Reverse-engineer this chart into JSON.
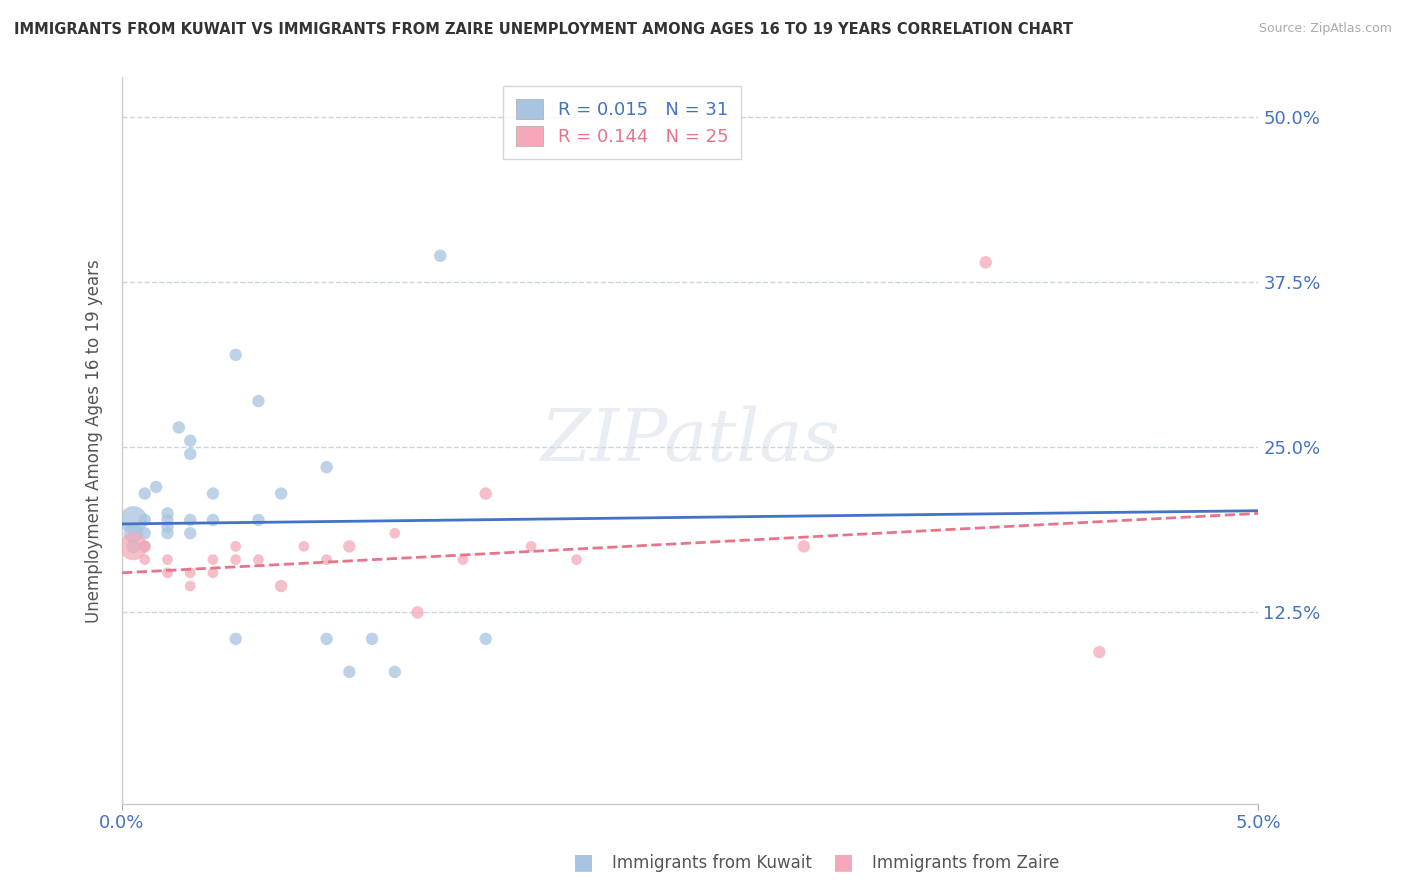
{
  "title": "IMMIGRANTS FROM KUWAIT VS IMMIGRANTS FROM ZAIRE UNEMPLOYMENT AMONG AGES 16 TO 19 YEARS CORRELATION CHART",
  "source": "Source: ZipAtlas.com",
  "ylabel": "Unemployment Among Ages 16 to 19 years",
  "legend_kuwait": "R = 0.015   N = 31",
  "legend_zaire": "R = 0.144   N = 25",
  "legend_label_kuwait": "Immigrants from Kuwait",
  "legend_label_zaire": "Immigrants from Zaire",
  "kuwait_color": "#a8c4e0",
  "zaire_color": "#f4a8b8",
  "kuwait_line_color": "#4472c4",
  "zaire_line_color": "#e8748a",
  "background_color": "#ffffff",
  "grid_color": "#c8d4e8",
  "xlim": [
    0.0,
    0.05
  ],
  "ylim": [
    -0.02,
    0.53
  ],
  "y_ticks": [
    0.125,
    0.25,
    0.375,
    0.5
  ],
  "y_tick_labels": [
    "12.5%",
    "25.0%",
    "37.5%",
    "50.0%"
  ],
  "kuwait_x": [
    0.0005,
    0.0005,
    0.0005,
    0.001,
    0.001,
    0.001,
    0.001,
    0.0015,
    0.002,
    0.002,
    0.002,
    0.002,
    0.0025,
    0.003,
    0.003,
    0.003,
    0.003,
    0.004,
    0.004,
    0.005,
    0.005,
    0.006,
    0.006,
    0.007,
    0.009,
    0.009,
    0.01,
    0.011,
    0.012,
    0.014,
    0.016
  ],
  "kuwait_y": [
    0.195,
    0.185,
    0.175,
    0.215,
    0.195,
    0.185,
    0.175,
    0.22,
    0.2,
    0.195,
    0.19,
    0.185,
    0.265,
    0.255,
    0.245,
    0.195,
    0.185,
    0.215,
    0.195,
    0.32,
    0.105,
    0.285,
    0.195,
    0.215,
    0.235,
    0.105,
    0.08,
    0.105,
    0.08,
    0.395,
    0.105
  ],
  "kuwait_sizes": [
    400,
    200,
    100,
    80,
    80,
    80,
    60,
    80,
    80,
    80,
    80,
    80,
    80,
    80,
    80,
    80,
    80,
    80,
    80,
    80,
    80,
    80,
    80,
    80,
    80,
    80,
    80,
    80,
    80,
    80,
    80
  ],
  "zaire_x": [
    0.0005,
    0.001,
    0.001,
    0.002,
    0.002,
    0.003,
    0.003,
    0.004,
    0.004,
    0.005,
    0.005,
    0.006,
    0.007,
    0.008,
    0.009,
    0.01,
    0.012,
    0.013,
    0.015,
    0.016,
    0.018,
    0.02,
    0.03,
    0.038,
    0.043
  ],
  "zaire_y": [
    0.175,
    0.175,
    0.165,
    0.165,
    0.155,
    0.155,
    0.145,
    0.165,
    0.155,
    0.175,
    0.165,
    0.165,
    0.145,
    0.175,
    0.165,
    0.175,
    0.185,
    0.125,
    0.165,
    0.215,
    0.175,
    0.165,
    0.175,
    0.39,
    0.095
  ],
  "zaire_sizes": [
    400,
    80,
    60,
    60,
    60,
    60,
    60,
    60,
    60,
    60,
    60,
    60,
    80,
    60,
    60,
    80,
    60,
    80,
    60,
    80,
    60,
    60,
    80,
    80,
    80
  ],
  "kuwait_trend_x": [
    0.0,
    0.05
  ],
  "kuwait_trend_y": [
    0.192,
    0.202
  ],
  "zaire_trend_x": [
    0.0,
    0.05
  ],
  "zaire_trend_y": [
    0.155,
    0.2
  ]
}
